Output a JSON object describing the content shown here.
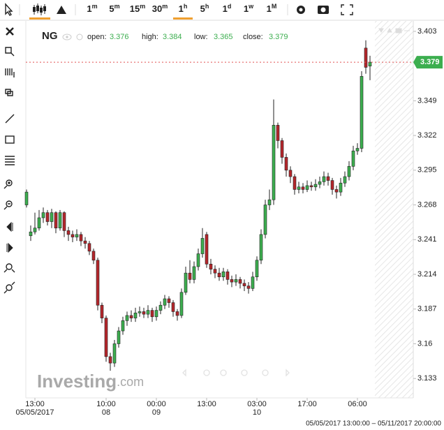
{
  "chart_data": {
    "type": "candlestick",
    "symbol": "NG",
    "ohlc_labels": [
      "open:",
      "high:",
      "low:",
      "close:"
    ],
    "ohlc_values": [
      3.376,
      3.384,
      3.365,
      3.379
    ],
    "toolbar_intervals": [
      [
        "1",
        "m"
      ],
      [
        "5",
        "m"
      ],
      [
        "15",
        "m"
      ],
      [
        "30",
        "m"
      ],
      [
        "1",
        "h"
      ],
      [
        "5",
        "h"
      ],
      [
        "1",
        "d"
      ],
      [
        "1",
        "w"
      ],
      [
        "1",
        "M"
      ]
    ],
    "watermark": [
      "Investing",
      ".com"
    ],
    "range_label": "05/05/2017 13:00:00 – 05/11/2017 20:00:00",
    "last_price": 3.379,
    "up_color": "#3cae4f",
    "down_color": "#b5262b",
    "ylim": [
      3.119,
      3.41
    ],
    "yticks": [
      3.403,
      3.349,
      3.322,
      3.295,
      3.268,
      3.241,
      3.214,
      3.187,
      3.16,
      3.133
    ],
    "grid": false,
    "categories": [
      null,
      null,
      "13:00",
      null,
      null,
      null,
      null,
      null,
      null,
      null,
      null,
      null,
      null,
      null,
      null,
      null,
      null,
      null,
      null,
      "10:00",
      null,
      null,
      null,
      null,
      null,
      null,
      null,
      null,
      null,
      null,
      null,
      "00:00",
      null,
      null,
      null,
      null,
      null,
      null,
      null,
      null,
      null,
      null,
      null,
      "13:00",
      null,
      null,
      null,
      null,
      null,
      null,
      null,
      null,
      null,
      null,
      null,
      "03:00",
      null,
      null,
      null,
      null,
      null,
      null,
      null,
      null,
      null,
      null,
      null,
      "17:00",
      null,
      null,
      null,
      null,
      null,
      null,
      null,
      null,
      null,
      null,
      null,
      "06:00",
      null,
      null,
      null
    ],
    "dates": [
      null,
      null,
      "05/05/2017",
      null,
      null,
      null,
      null,
      null,
      null,
      null,
      null,
      null,
      null,
      null,
      null,
      null,
      null,
      null,
      null,
      "08",
      null,
      null,
      null,
      null,
      null,
      null,
      null,
      null,
      null,
      null,
      null,
      "09",
      null,
      null,
      null,
      null,
      null,
      null,
      null,
      null,
      null,
      null,
      null,
      null,
      null,
      null,
      null,
      null,
      null,
      null,
      null,
      null,
      null,
      null,
      null,
      "10",
      null,
      null,
      null,
      null,
      null,
      null,
      null,
      null,
      null,
      null,
      null,
      null,
      null,
      null,
      null,
      null,
      null,
      null,
      null,
      null,
      null,
      null,
      null,
      null,
      null,
      null,
      null
    ],
    "open": [
      3.268,
      3.244,
      3.247,
      3.25,
      3.258,
      3.262,
      3.255,
      3.262,
      3.25,
      3.262,
      3.248,
      3.245,
      3.243,
      3.245,
      3.24,
      3.238,
      3.232,
      3.225,
      3.19,
      3.18,
      3.15,
      3.145,
      3.16,
      3.17,
      3.178,
      3.182,
      3.18,
      3.184,
      3.185,
      3.183,
      3.186,
      3.181,
      3.186,
      3.19,
      3.195,
      3.192,
      3.185,
      3.182,
      3.2,
      3.215,
      3.21,
      3.22,
      3.23,
      3.245,
      3.222,
      3.218,
      3.215,
      3.212,
      3.216,
      3.21,
      3.208,
      3.21,
      3.207,
      3.205,
      3.203,
      3.212,
      3.225,
      3.245,
      3.268,
      3.272,
      3.33,
      3.318,
      3.305,
      3.295,
      3.29,
      3.28,
      3.282,
      3.28,
      3.283,
      3.282,
      3.284,
      3.286,
      3.29,
      3.287,
      3.28,
      3.278,
      3.285,
      3.29,
      3.298,
      3.31,
      3.312,
      3.39,
      3.376
    ],
    "high": [
      3.28,
      3.252,
      3.262,
      3.264,
      3.266,
      3.264,
      3.265,
      3.263,
      3.264,
      3.263,
      3.251,
      3.248,
      3.249,
      3.247,
      3.243,
      3.24,
      3.234,
      3.227,
      3.192,
      3.182,
      3.153,
      3.163,
      3.173,
      3.181,
      3.185,
      3.186,
      3.188,
      3.189,
      3.188,
      3.19,
      3.188,
      3.189,
      3.193,
      3.198,
      3.197,
      3.194,
      3.187,
      3.203,
      3.22,
      3.225,
      3.224,
      3.234,
      3.25,
      3.247,
      3.226,
      3.221,
      3.219,
      3.219,
      3.218,
      3.213,
      3.214,
      3.212,
      3.21,
      3.208,
      3.216,
      3.228,
      3.249,
      3.272,
      3.28,
      3.35,
      3.332,
      3.32,
      3.308,
      3.298,
      3.292,
      3.286,
      3.285,
      3.287,
      3.286,
      3.288,
      3.29,
      3.294,
      3.293,
      3.289,
      3.283,
      3.289,
      3.294,
      3.302,
      3.314,
      3.316,
      3.372,
      3.396,
      3.384
    ],
    "low": [
      3.266,
      3.24,
      3.245,
      3.248,
      3.254,
      3.252,
      3.25,
      3.246,
      3.248,
      3.243,
      3.24,
      3.239,
      3.24,
      3.236,
      3.234,
      3.229,
      3.222,
      3.186,
      3.176,
      3.146,
      3.139,
      3.142,
      3.157,
      3.167,
      3.174,
      3.177,
      3.177,
      3.181,
      3.18,
      3.18,
      3.177,
      3.178,
      3.183,
      3.187,
      3.188,
      3.181,
      3.178,
      3.18,
      3.198,
      3.207,
      3.207,
      3.217,
      3.227,
      3.219,
      3.214,
      3.211,
      3.209,
      3.209,
      3.206,
      3.204,
      3.205,
      3.203,
      3.201,
      3.199,
      3.201,
      3.209,
      3.222,
      3.242,
      3.264,
      3.268,
      3.312,
      3.3,
      3.29,
      3.285,
      3.276,
      3.277,
      3.277,
      3.278,
      3.279,
      3.279,
      3.281,
      3.283,
      3.283,
      3.276,
      3.273,
      3.275,
      3.282,
      3.287,
      3.295,
      3.307,
      3.309,
      3.37,
      3.365
    ],
    "close": [
      3.278,
      3.247,
      3.25,
      3.258,
      3.262,
      3.255,
      3.262,
      3.25,
      3.262,
      3.248,
      3.245,
      3.243,
      3.245,
      3.24,
      3.238,
      3.232,
      3.225,
      3.19,
      3.18,
      3.15,
      3.145,
      3.16,
      3.17,
      3.178,
      3.182,
      3.18,
      3.184,
      3.185,
      3.183,
      3.186,
      3.181,
      3.186,
      3.19,
      3.195,
      3.192,
      3.185,
      3.182,
      3.2,
      3.215,
      3.21,
      3.22,
      3.23,
      3.242,
      3.222,
      3.218,
      3.215,
      3.212,
      3.216,
      3.21,
      3.208,
      3.21,
      3.207,
      3.205,
      3.203,
      3.212,
      3.225,
      3.245,
      3.268,
      3.272,
      3.33,
      3.318,
      3.305,
      3.295,
      3.29,
      3.28,
      3.282,
      3.28,
      3.283,
      3.282,
      3.284,
      3.286,
      3.29,
      3.287,
      3.28,
      3.278,
      3.285,
      3.29,
      3.298,
      3.31,
      3.312,
      3.368,
      3.375,
      3.379
    ]
  }
}
